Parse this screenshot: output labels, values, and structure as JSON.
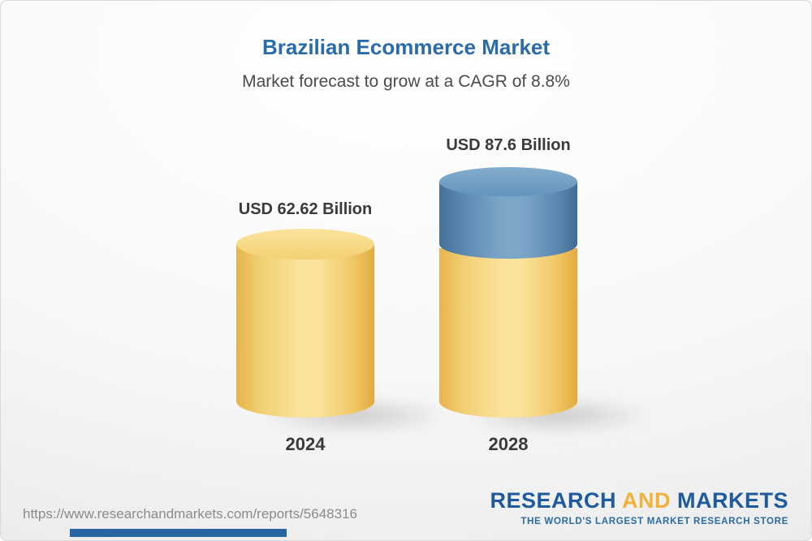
{
  "header": {
    "title": "Brazilian Ecommerce Market",
    "subtitle": "Market forecast to grow at a CAGR of 8.8%"
  },
  "chart_data": {
    "type": "bar",
    "title": "Brazilian Ecommerce Market",
    "subtitle": "Market forecast to grow at a CAGR of 8.8%",
    "categories": [
      "2024",
      "2028"
    ],
    "values": [
      62.62,
      87.6
    ],
    "value_labels": [
      "USD 62.62 Billion",
      "USD 87.6 Billion"
    ],
    "unit": "USD Billion",
    "cagr_pct": 8.8,
    "ylim": [
      0,
      90
    ],
    "legend": "none",
    "grid": false,
    "colors": {
      "base_segment": "#F5CE6E",
      "growth_segment": "#5E8FB8"
    },
    "notes": "2028 bar is a stacked cylinder: gold base equal to 2024 value plus blue growth segment on top"
  },
  "footer": {
    "url": "https://www.researchandmarkets.com/reports/5648316",
    "logo": {
      "part1": "RESEARCH",
      "part2": "AND",
      "part3": "MARKETS",
      "tagline": "THE WORLD'S LARGEST MARKET RESEARCH STORE"
    }
  },
  "colors": {
    "title_blue": "#2A6BA9",
    "logo_blue": "#1D5A9E",
    "logo_gold": "#F1B23B",
    "text_dark": "#3A3A3A",
    "url_gray": "#8B8B8B"
  }
}
